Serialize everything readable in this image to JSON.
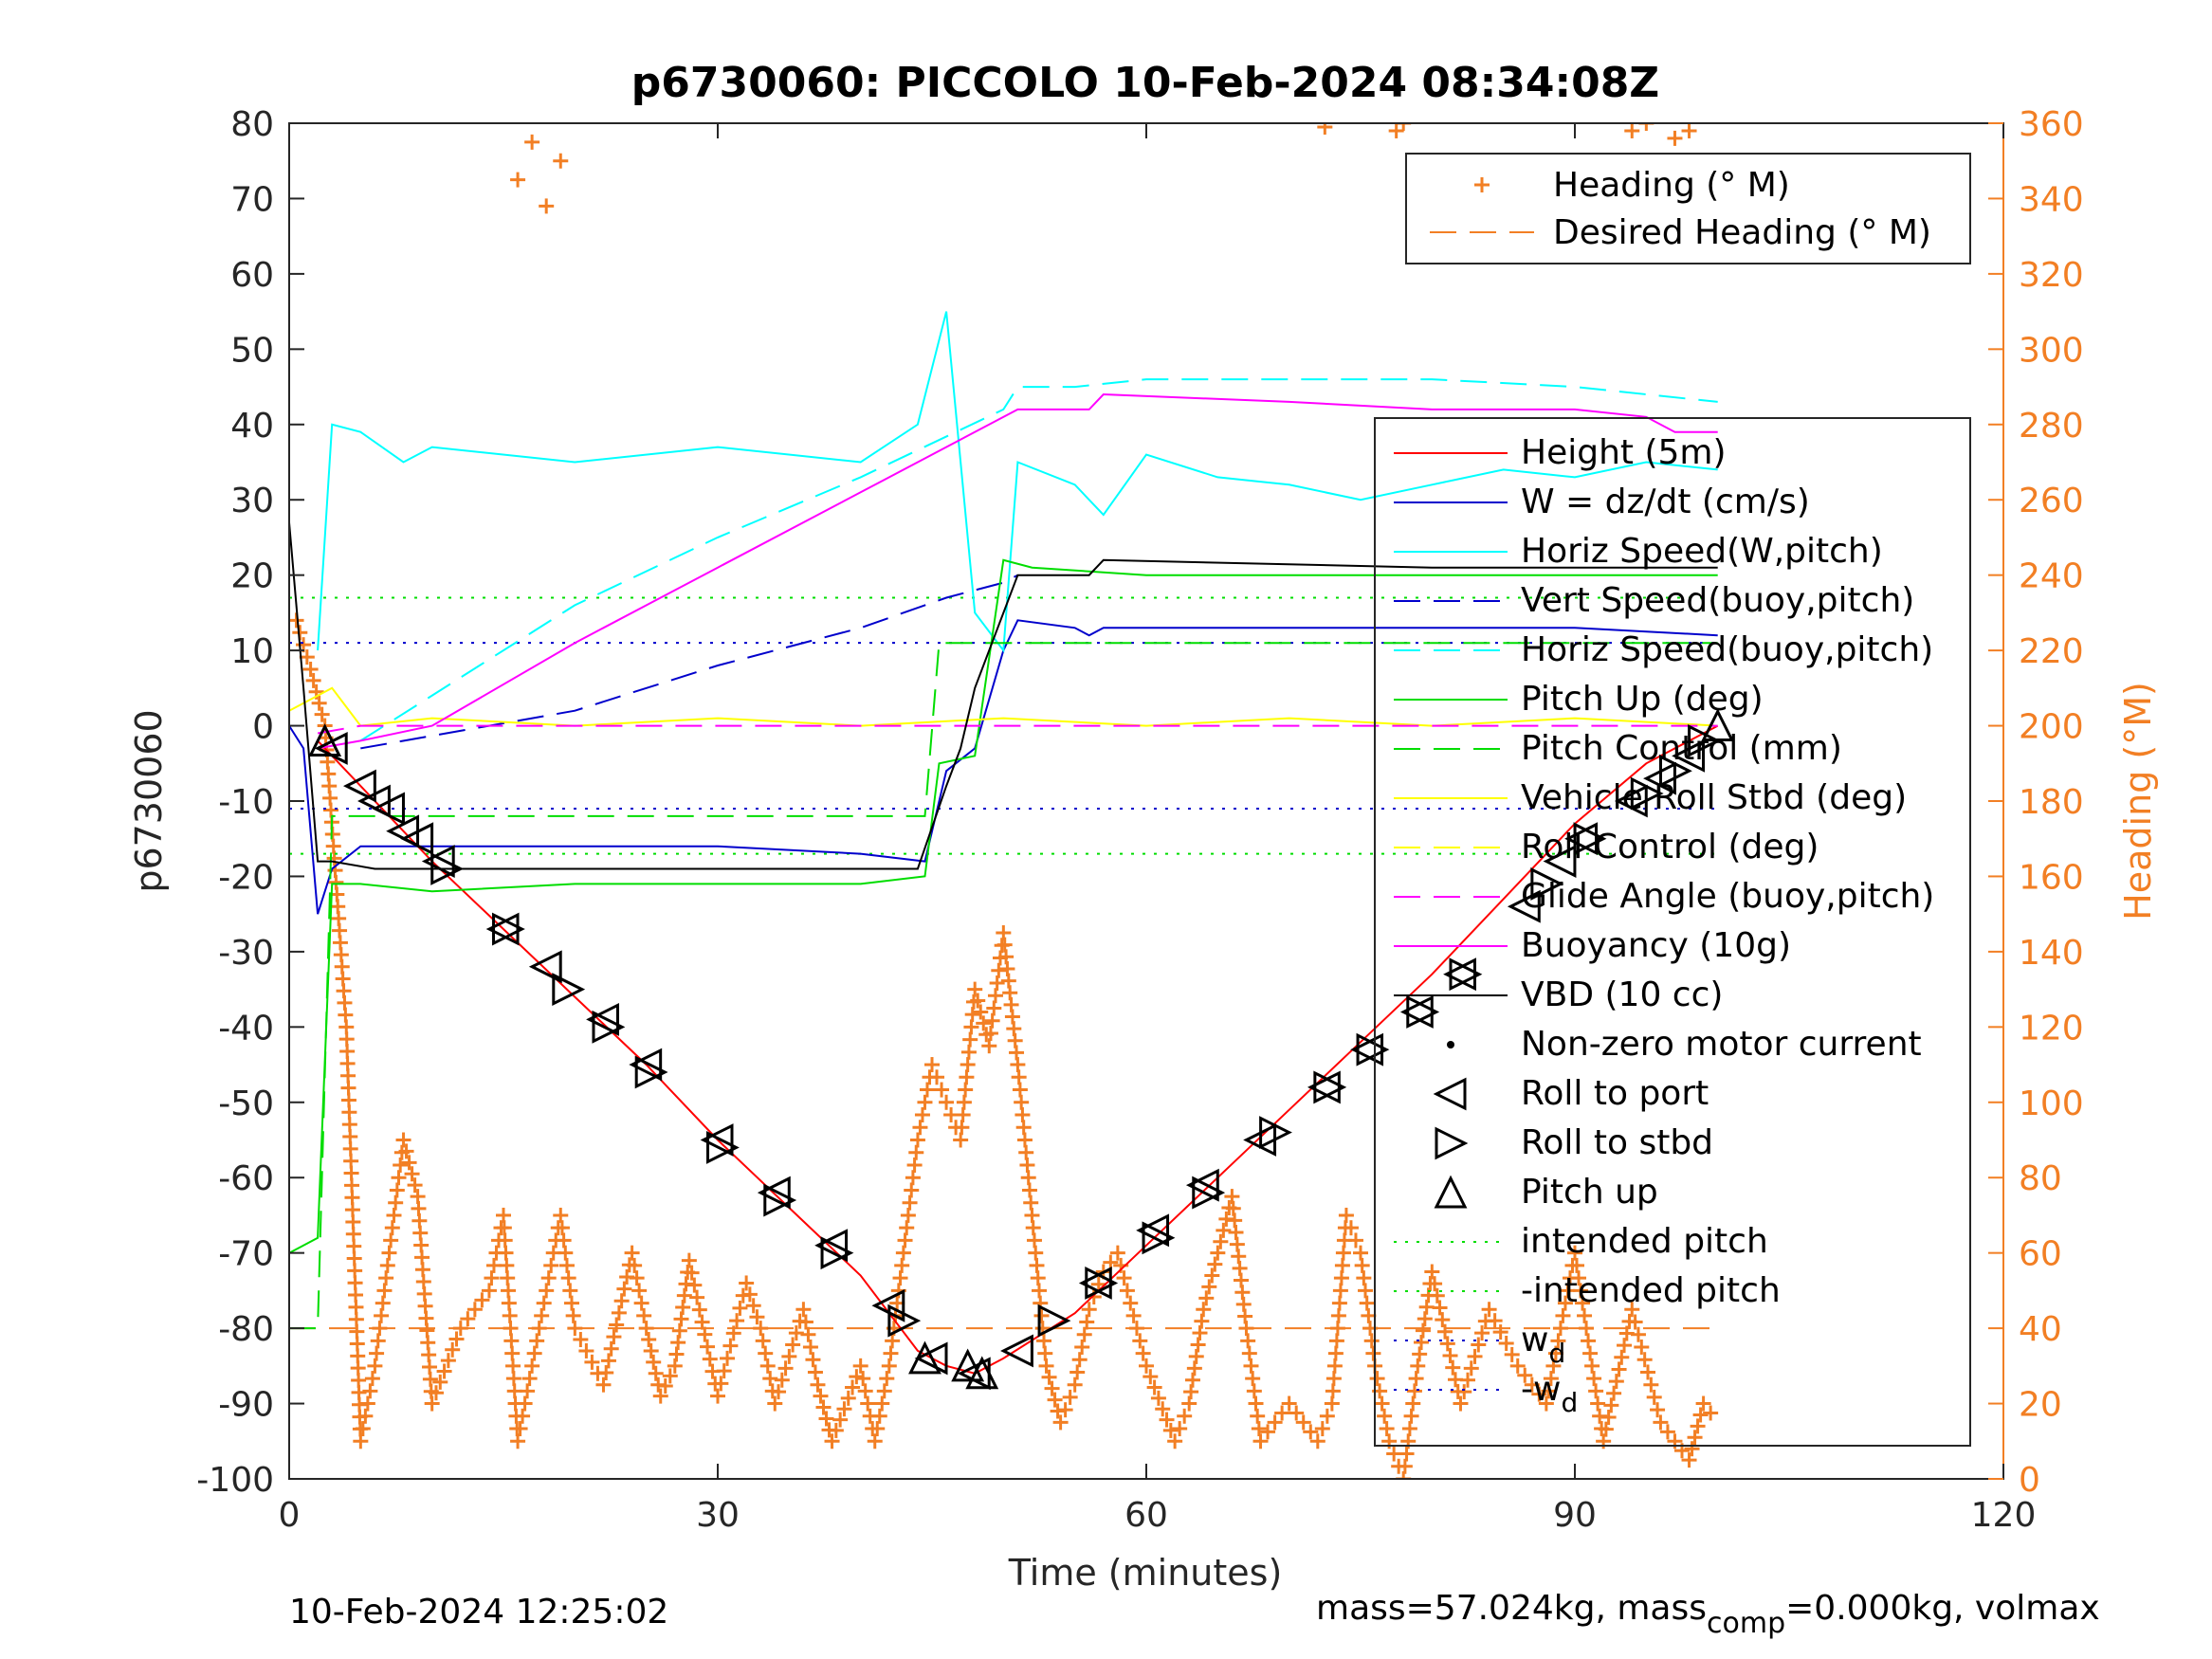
{
  "chart_data": {
    "type": "line",
    "title": "p6730060: PICCOLO 10-Feb-2024 08:34:08Z",
    "xlabel": "Time (minutes)",
    "ylabel": "p6730060",
    "y2label": "Heading (°M)",
    "xlim": [
      0,
      120
    ],
    "ylim": [
      -100,
      80
    ],
    "y2lim": [
      0,
      360
    ],
    "x_ticks": [
      "0",
      "30",
      "60",
      "90",
      "120"
    ],
    "y_ticks": [
      "-100",
      "-90",
      "-80",
      "-70",
      "-60",
      "-50",
      "-40",
      "-30",
      "-20",
      "-10",
      "0",
      "10",
      "20",
      "30",
      "40",
      "50",
      "60",
      "70",
      "80"
    ],
    "y2_ticks": [
      "0",
      "20",
      "40",
      "60",
      "80",
      "100",
      "120",
      "140",
      "160",
      "180",
      "200",
      "220",
      "240",
      "260",
      "280",
      "300",
      "320",
      "340",
      "360"
    ],
    "grid": false,
    "colors": {
      "height": "#ff0000",
      "w": "#0000cc",
      "horiz_speed": "#00ffff",
      "pitch": "#00dd00",
      "roll": "#ffff00",
      "glide": "#ff00ff",
      "buoyancy": "#ff00ff",
      "vbd": "#000000",
      "heading": "#f27f24",
      "intended_pitch": "#00dd00",
      "wd": "#0000cc",
      "markers": "#000000"
    },
    "legend_right_axis": [
      "Heading (° M)",
      "Desired Heading (° M)"
    ],
    "legend_left_axis": [
      "Height (5m)",
      "W = dz/dt (cm/s)",
      "Horiz Speed(W,pitch)",
      "Vert Speed(buoy,pitch)",
      "Horiz Speed(buoy,pitch)",
      "Pitch Up (deg)",
      "Pitch Control (mm)",
      "Vehicle Roll Stbd (deg)",
      "Roll Control (deg)",
      "Glide Angle (buoy,pitch)",
      "Buoyancy (10g)",
      "VBD (10 cc)",
      "Non-zero motor current",
      "Roll to port",
      "Roll to stbd",
      "Pitch up",
      "intended pitch",
      "-intended pitch",
      "w",
      "-w"
    ],
    "legend_subscript": "d",
    "series": [
      {
        "name": "Height (5m)",
        "x": [
          2,
          5,
          10,
          15,
          20,
          25,
          30,
          35,
          40,
          44,
          46,
          48,
          50,
          55,
          60,
          65,
          70,
          75,
          80,
          85,
          90,
          95,
          100
        ],
        "y": [
          -2,
          -8,
          -18,
          -27,
          -36,
          -45,
          -55,
          -64,
          -73,
          -83,
          -85,
          -86,
          -84,
          -78,
          -69,
          -60,
          -51,
          -42,
          -33,
          -23,
          -13,
          -5,
          0
        ]
      },
      {
        "name": "W = dz/dt (cm/s)",
        "x": [
          0,
          1,
          2,
          3,
          5,
          10,
          20,
          30,
          40,
          44.5,
          46,
          48,
          50,
          51,
          55,
          56,
          57,
          60,
          70,
          80,
          90,
          100
        ],
        "y": [
          0,
          -3,
          -25,
          -19,
          -16,
          -16,
          -16,
          -16,
          -17,
          -18,
          -6,
          -3,
          10,
          14,
          13,
          12,
          13,
          13,
          13,
          13,
          13,
          12
        ]
      },
      {
        "name": "Horiz Speed(W,pitch)",
        "x": [
          2,
          3,
          5,
          8,
          10,
          20,
          30,
          40,
          44,
          46,
          48,
          50,
          51,
          55,
          56,
          57,
          60,
          65,
          70,
          75,
          80,
          85,
          90,
          95,
          100
        ],
        "y": [
          10,
          40,
          39,
          35,
          37,
          35,
          37,
          35,
          40,
          55,
          15,
          10,
          35,
          32,
          30,
          28,
          36,
          33,
          32,
          30,
          32,
          34,
          33,
          35,
          34
        ]
      },
      {
        "name": "Vert Speed(buoy,pitch)",
        "x": [
          5,
          20,
          30,
          40,
          46,
          50,
          51
        ],
        "y": [
          -3,
          2,
          8,
          13,
          17,
          19,
          20
        ]
      },
      {
        "name": "Horiz Speed(buoy,pitch)",
        "x": [
          5,
          20,
          30,
          40,
          50,
          51,
          55,
          60,
          70,
          80,
          90,
          95,
          100
        ],
        "y": [
          -2,
          16,
          25,
          33,
          42,
          45,
          45,
          46,
          46,
          46,
          45,
          44,
          43
        ]
      },
      {
        "name": "Pitch Up (deg)",
        "x": [
          0,
          2,
          3,
          5,
          10,
          20,
          30,
          40,
          44.5,
          45.5,
          48,
          50,
          52,
          60,
          70,
          80,
          90,
          100
        ],
        "y": [
          -70,
          -68,
          -21,
          -21,
          -22,
          -21,
          -21,
          -21,
          -20,
          -5,
          -4,
          22,
          21,
          20,
          20,
          20,
          20,
          20
        ]
      },
      {
        "name": "Pitch Control (mm)",
        "x": [
          0,
          2,
          3,
          10,
          40,
          44.5,
          45.5,
          100
        ],
        "y": [
          -80,
          -80,
          -12,
          -12,
          -12,
          -12,
          11,
          11
        ]
      },
      {
        "name": "Vehicle Roll Stbd (deg)",
        "x": [
          0,
          3,
          5,
          10,
          20,
          30,
          40,
          50,
          60,
          70,
          80,
          90,
          100
        ],
        "y": [
          2,
          5,
          0,
          1,
          0,
          1,
          0,
          1,
          0,
          1,
          0,
          1,
          0
        ]
      },
      {
        "name": "Glide Angle (buoy,pitch)",
        "x": [
          2,
          5,
          10,
          20,
          40,
          50,
          60,
          80,
          100
        ],
        "y": [
          -1,
          0,
          0,
          0,
          0,
          0,
          0,
          0,
          0
        ]
      },
      {
        "name": "Buoyancy (10g)",
        "x": [
          2,
          5,
          10,
          20,
          30,
          40,
          51,
          56,
          57,
          70,
          80,
          90,
          95,
          97,
          100
        ],
        "y": [
          -3,
          -2,
          0,
          11,
          21,
          31,
          42,
          42,
          44,
          43,
          42,
          42,
          41,
          39,
          39
        ]
      },
      {
        "name": "VBD (10 cc)",
        "x": [
          0,
          1,
          2,
          3,
          6,
          10,
          20,
          30,
          40,
          44,
          46,
          47,
          48,
          51,
          56,
          57,
          80,
          90,
          100
        ],
        "y": [
          27,
          5,
          -18,
          -18,
          -19,
          -19,
          -19,
          -19,
          -19,
          -19,
          -8,
          -3,
          5,
          20,
          20,
          22,
          21,
          21,
          21
        ]
      }
    ],
    "heading_x": [
      0.5,
      1.5,
      2.5,
      4,
      5,
      6,
      8,
      9,
      10,
      12,
      14,
      15,
      16,
      17,
      18,
      19,
      20,
      22,
      24,
      25,
      26,
      27,
      28,
      30,
      32,
      33,
      34,
      36,
      37,
      38,
      40,
      41,
      42,
      43,
      44,
      45,
      46,
      47,
      48,
      49,
      50,
      51,
      52,
      53,
      54,
      55,
      56,
      57,
      58,
      60,
      62,
      63,
      64,
      65,
      66,
      67,
      68,
      70,
      72,
      73,
      74,
      75,
      76,
      77,
      78,
      79,
      80,
      82,
      84,
      86,
      88,
      90,
      92,
      94,
      96,
      98,
      99,
      100
    ],
    "heading_y": [
      228,
      215,
      200,
      120,
      10,
      30,
      90,
      75,
      20,
      40,
      50,
      70,
      10,
      30,
      50,
      70,
      40,
      25,
      60,
      40,
      22,
      30,
      58,
      22,
      52,
      40,
      20,
      45,
      25,
      10,
      30,
      10,
      30,
      60,
      90,
      110,
      100,
      90,
      130,
      115,
      145,
      110,
      70,
      30,
      15,
      25,
      45,
      55,
      60,
      30,
      10,
      20,
      45,
      60,
      75,
      40,
      10,
      20,
      10,
      20,
      70,
      60,
      30,
      10,
      0,
      30,
      55,
      20,
      45,
      30,
      20,
      60,
      10,
      45,
      15,
      5,
      20,
      15
    ],
    "heading_top_x": [
      16,
      17,
      18,
      19,
      72.5,
      77.5,
      78,
      94,
      95,
      97,
      98
    ],
    "heading_top_y": [
      345,
      355,
      338,
      350,
      359,
      358,
      360,
      358,
      360,
      356,
      358
    ],
    "desired_heading": 40,
    "intended_pitch": 17,
    "wd": 11,
    "roll_markers": [
      {
        "x": 2.5,
        "y": -2,
        "t": "up"
      },
      {
        "x": 3,
        "y": -3,
        "t": "port"
      },
      {
        "x": 5,
        "y": -8,
        "t": "port"
      },
      {
        "x": 6,
        "y": -10,
        "t": "port"
      },
      {
        "x": 7,
        "y": -11,
        "t": "port"
      },
      {
        "x": 8,
        "y": -14,
        "t": "port"
      },
      {
        "x": 9,
        "y": -15,
        "t": "port"
      },
      {
        "x": 10.5,
        "y": -18,
        "t": "port"
      },
      {
        "x": 11,
        "y": -19,
        "t": "stbd"
      },
      {
        "x": 15,
        "y": -27,
        "t": "port"
      },
      {
        "x": 15.3,
        "y": -27,
        "t": "stbd"
      },
      {
        "x": 18,
        "y": -32,
        "t": "port"
      },
      {
        "x": 19.5,
        "y": -35,
        "t": "stbd"
      },
      {
        "x": 22,
        "y": -39,
        "t": "port"
      },
      {
        "x": 22.3,
        "y": -40,
        "t": "stbd"
      },
      {
        "x": 25,
        "y": -45,
        "t": "port"
      },
      {
        "x": 25.3,
        "y": -46,
        "t": "stbd"
      },
      {
        "x": 30,
        "y": -55,
        "t": "port"
      },
      {
        "x": 30.3,
        "y": -56,
        "t": "stbd"
      },
      {
        "x": 34,
        "y": -62,
        "t": "port"
      },
      {
        "x": 34.3,
        "y": -63,
        "t": "stbd"
      },
      {
        "x": 38,
        "y": -69,
        "t": "port"
      },
      {
        "x": 38.3,
        "y": -70,
        "t": "stbd"
      },
      {
        "x": 42,
        "y": -77,
        "t": "port"
      },
      {
        "x": 43,
        "y": -79,
        "t": "stbd"
      },
      {
        "x": 44.5,
        "y": -84,
        "t": "up"
      },
      {
        "x": 45,
        "y": -84,
        "t": "port"
      },
      {
        "x": 47.5,
        "y": -85,
        "t": "up"
      },
      {
        "x": 48,
        "y": -86,
        "t": "port"
      },
      {
        "x": 48.5,
        "y": -86,
        "t": "up"
      },
      {
        "x": 51,
        "y": -83,
        "t": "port"
      },
      {
        "x": 53.5,
        "y": -79,
        "t": "stbd"
      },
      {
        "x": 56.5,
        "y": -74,
        "t": "port"
      },
      {
        "x": 56.8,
        "y": -74,
        "t": "stbd"
      },
      {
        "x": 60.5,
        "y": -67,
        "t": "port"
      },
      {
        "x": 60.8,
        "y": -68,
        "t": "stbd"
      },
      {
        "x": 64,
        "y": -61,
        "t": "port"
      },
      {
        "x": 64.3,
        "y": -62,
        "t": "stbd"
      },
      {
        "x": 68,
        "y": -55,
        "t": "port"
      },
      {
        "x": 69,
        "y": -54,
        "t": "stbd"
      },
      {
        "x": 72.5,
        "y": -48,
        "t": "port"
      },
      {
        "x": 72.8,
        "y": -48,
        "t": "stbd"
      },
      {
        "x": 75.5,
        "y": -43,
        "t": "port"
      },
      {
        "x": 75.8,
        "y": -43,
        "t": "stbd"
      },
      {
        "x": 79,
        "y": -38,
        "t": "port"
      },
      {
        "x": 79.3,
        "y": -38,
        "t": "stbd"
      },
      {
        "x": 82,
        "y": -33,
        "t": "port"
      },
      {
        "x": 82.3,
        "y": -33,
        "t": "stbd"
      },
      {
        "x": 86.5,
        "y": -24,
        "t": "port"
      },
      {
        "x": 88,
        "y": -21,
        "t": "stbd"
      },
      {
        "x": 89,
        "y": -18,
        "t": "port"
      },
      {
        "x": 90.5,
        "y": -15,
        "t": "port"
      },
      {
        "x": 91,
        "y": -15,
        "t": "stbd"
      },
      {
        "x": 94,
        "y": -10,
        "t": "port"
      },
      {
        "x": 95,
        "y": -9,
        "t": "stbd"
      },
      {
        "x": 96,
        "y": -7,
        "t": "port"
      },
      {
        "x": 97,
        "y": -6,
        "t": "stbd"
      },
      {
        "x": 98,
        "y": -4,
        "t": "port"
      },
      {
        "x": 99,
        "y": -2,
        "t": "stbd"
      },
      {
        "x": 100,
        "y": 0,
        "t": "up"
      }
    ],
    "footer_left": "10-Feb-2024 12:25:02",
    "footer_right_a": "mass=57.024kg, mass",
    "footer_right_sub": "comp",
    "footer_right_b": "=0.000kg, volmax"
  }
}
